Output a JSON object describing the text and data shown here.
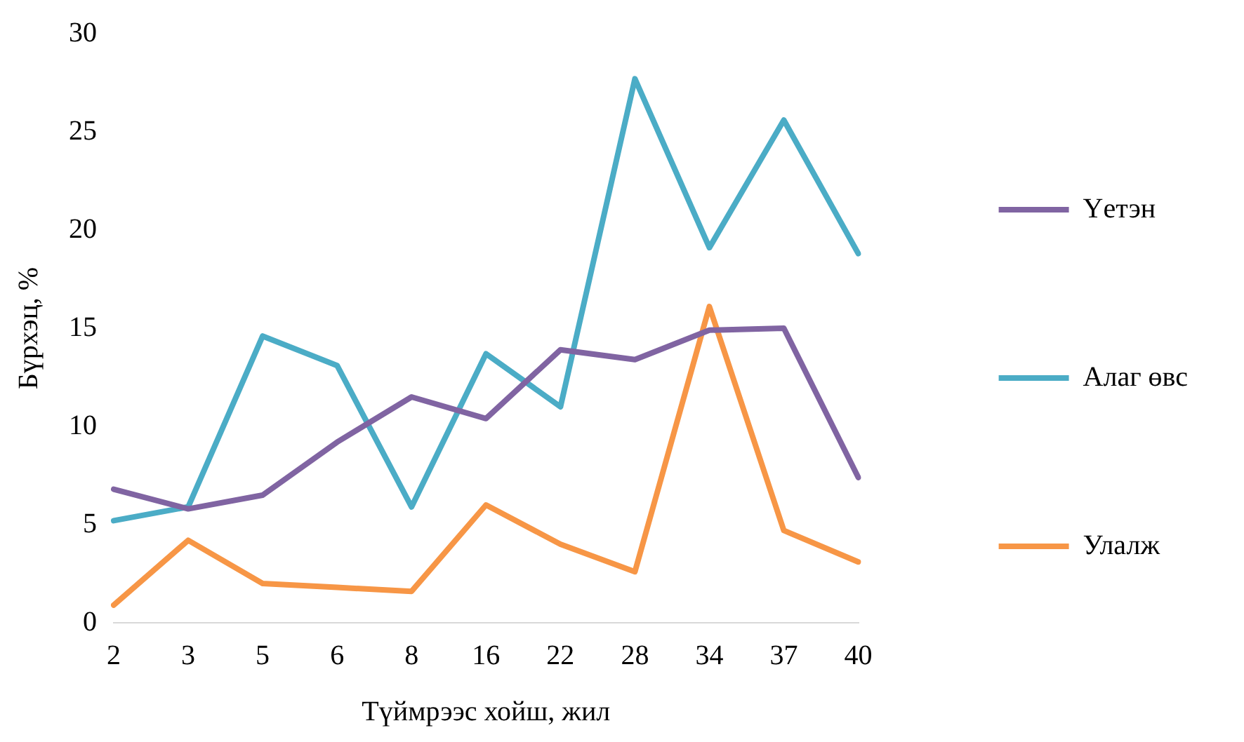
{
  "chart_data": {
    "type": "line",
    "xlabel": "Түймрээс хойш, жил",
    "ylabel": "Бүрхэц, %",
    "categories": [
      "2",
      "3",
      "5",
      "6",
      "8",
      "16",
      "22",
      "28",
      "34",
      "37",
      "40"
    ],
    "series": [
      {
        "name": "Үетэн",
        "color": "#8064a2",
        "values": [
          6.8,
          5.8,
          6.5,
          9.2,
          11.5,
          10.4,
          13.9,
          13.4,
          14.9,
          15.0,
          7.4
        ]
      },
      {
        "name": "Алаг өвс",
        "color": "#4bacc6",
        "values": [
          5.2,
          5.9,
          14.6,
          13.1,
          5.9,
          13.7,
          11.0,
          27.7,
          19.1,
          25.6,
          18.8
        ]
      },
      {
        "name": "Улалж",
        "color": "#f79646",
        "values": [
          0.9,
          4.2,
          2.0,
          1.8,
          1.6,
          6.0,
          4.0,
          2.6,
          16.1,
          4.7,
          3.1
        ]
      }
    ],
    "ylim": [
      0,
      30
    ],
    "yticks": [
      0,
      5,
      10,
      15,
      20,
      25,
      30
    ],
    "grid": false,
    "legend": "right",
    "marker": "none",
    "line_style": "solid"
  }
}
